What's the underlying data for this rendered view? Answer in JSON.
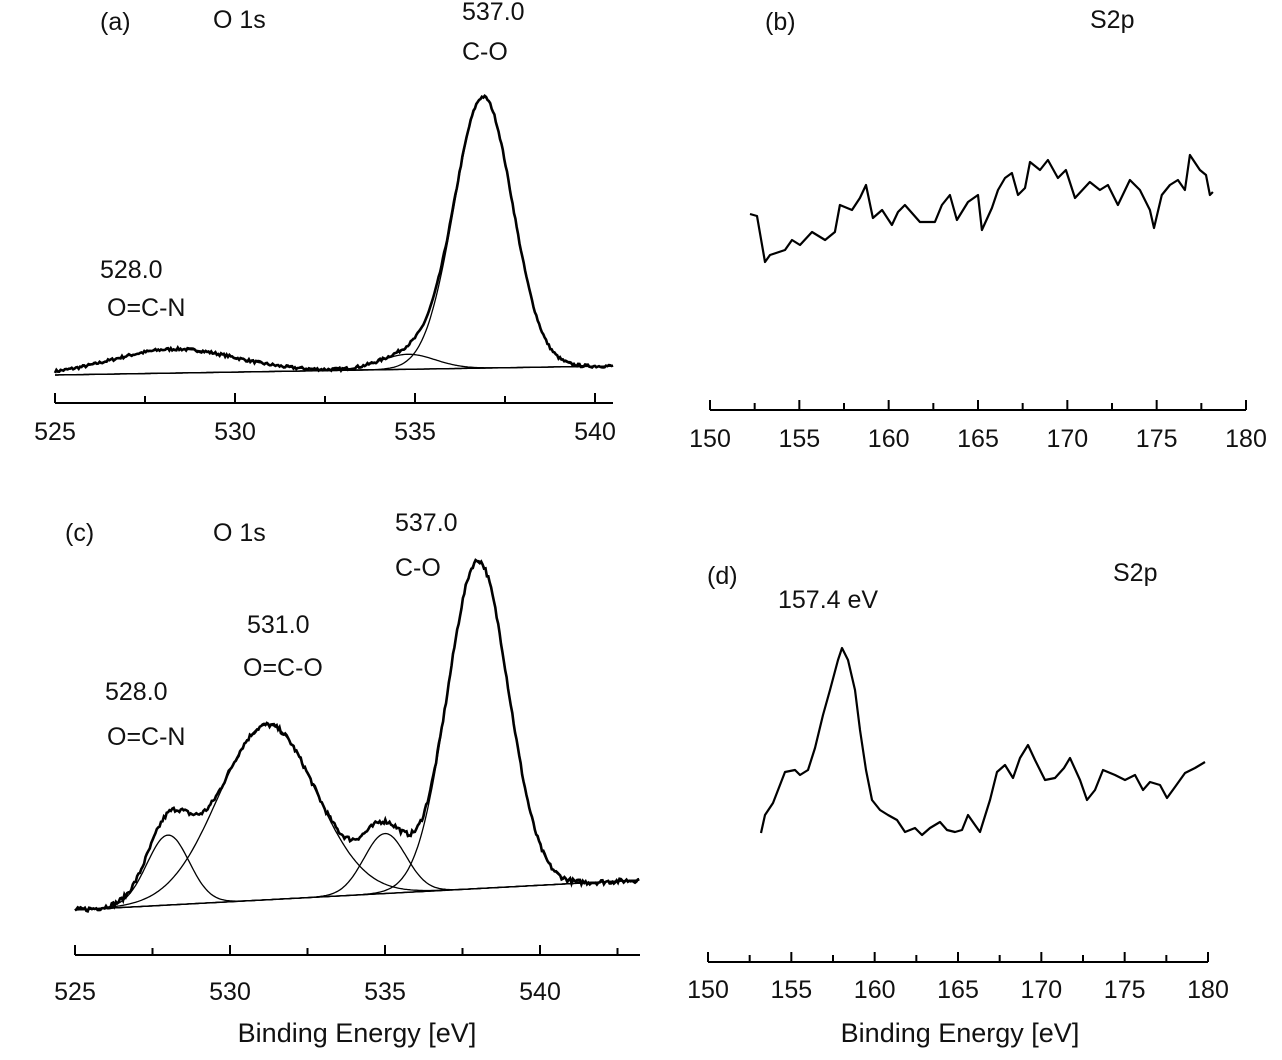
{
  "chart_data": [
    {
      "panel": "(a)",
      "type": "line",
      "title": "O 1s",
      "xlabel": "",
      "xlim": [
        525,
        540.5
      ],
      "xticks": [
        525,
        530,
        535,
        540
      ],
      "ylim": [
        0,
        300
      ],
      "baseline": {
        "x": [
          525,
          540.5
        ],
        "y": [
          5,
          14
        ]
      },
      "components": [
        {
          "center": 528.3,
          "height": 24,
          "fwhm": 4.0
        },
        {
          "center": 534.8,
          "height": 15,
          "fwhm": 1.8
        },
        {
          "center": 536.9,
          "height": 271,
          "fwhm": 1.9
        }
      ],
      "annotations": [
        "537.0",
        "C-O",
        "528.0",
        "O=C-N"
      ]
    },
    {
      "panel": "(b)",
      "type": "line",
      "title": "S2p",
      "xlabel": "",
      "xlim": [
        150,
        180
      ],
      "xticks": [
        150,
        155,
        160,
        165,
        170,
        175,
        180
      ],
      "ylim": [
        0,
        200
      ],
      "x": [
        152.24,
        152.63,
        153.08,
        153.36,
        154.2,
        154.59,
        155.04,
        155.71,
        156.44,
        156.99,
        157.27,
        157.95,
        158.39,
        158.73,
        159.12,
        159.63,
        160.18,
        160.52,
        160.91,
        161.75,
        162.59,
        162.98,
        163.43,
        163.82,
        164.44,
        165.0,
        165.22,
        165.78,
        166.12,
        166.51,
        166.9,
        167.24,
        167.63,
        167.91,
        168.47,
        168.91,
        169.47,
        169.92,
        170.43,
        171.26,
        171.82,
        172.27,
        172.83,
        173.5,
        174.06,
        174.62,
        174.85,
        175.29,
        175.74,
        176.19,
        176.58,
        176.86,
        177.42,
        177.76,
        177.98,
        178.15
      ],
      "y": [
        56,
        54,
        8,
        15,
        20,
        30,
        25,
        38,
        30,
        38,
        65,
        60,
        72,
        85,
        52,
        60,
        45,
        58,
        65,
        48,
        48,
        65,
        75,
        50,
        68,
        75,
        40,
        62,
        80,
        92,
        97,
        75,
        82,
        108,
        100,
        110,
        92,
        100,
        72,
        88,
        80,
        85,
        65,
        90,
        80,
        60,
        42,
        75,
        85,
        90,
        80,
        115,
        100,
        95,
        75,
        78
      ],
      "annotations": []
    },
    {
      "panel": "(c)",
      "type": "line",
      "title": "O 1s",
      "xlabel": "Binding Energy [eV]",
      "xlim": [
        525,
        543.2
      ],
      "xticks": [
        525,
        530,
        535,
        540
      ],
      "ylim": [
        0,
        400
      ],
      "baseline": {
        "x": [
          525,
          543.2
        ],
        "y": [
          10,
          40
        ]
      },
      "components": [
        {
          "center": 528.0,
          "height": 70,
          "fwhm": 1.6
        },
        {
          "center": 531.2,
          "height": 175,
          "fwhm": 3.7
        },
        {
          "center": 535.0,
          "height": 60,
          "fwhm": 1.6
        },
        {
          "center": 538.0,
          "height": 328,
          "fwhm": 2.3
        }
      ],
      "annotations": [
        "537.0",
        "C-O",
        "531.0",
        "O=C-O",
        "528.0",
        "O=C-N"
      ]
    },
    {
      "panel": "(d)",
      "type": "line",
      "title": "S2p",
      "xlabel": "Binding Energy [eV]",
      "xlim": [
        150,
        180
      ],
      "xticks": [
        150,
        155,
        160,
        165,
        170,
        175,
        180
      ],
      "ylim": [
        0,
        250
      ],
      "x": [
        153.18,
        153.42,
        153.9,
        154.62,
        155.22,
        155.52,
        156.0,
        156.42,
        156.9,
        157.32,
        157.8,
        158.04,
        158.4,
        158.82,
        159.12,
        159.48,
        159.84,
        160.32,
        160.8,
        161.34,
        161.82,
        162.42,
        162.84,
        163.32,
        163.92,
        164.34,
        164.82,
        165.24,
        165.6,
        166.02,
        166.32,
        166.92,
        167.34,
        167.82,
        168.3,
        168.72,
        169.2,
        169.62,
        170.22,
        170.82,
        171.36,
        171.72,
        172.32,
        172.74,
        173.22,
        173.7,
        174.42,
        175.02,
        175.62,
        176.1,
        176.52,
        177.12,
        177.54,
        178.02,
        178.62,
        179.22,
        179.82
      ],
      "y": [
        27,
        45,
        57,
        88,
        90,
        85,
        90,
        112,
        145,
        170,
        200,
        212,
        200,
        170,
        130,
        90,
        60,
        50,
        45,
        40,
        28,
        32,
        25,
        32,
        38,
        30,
        28,
        30,
        45,
        35,
        28,
        60,
        88,
        95,
        82,
        102,
        115,
        100,
        80,
        82,
        92,
        102,
        80,
        60,
        70,
        90,
        85,
        80,
        85,
        70,
        78,
        75,
        62,
        73,
        87,
        92,
        98
      ],
      "annotations": [
        "157.4 eV"
      ]
    }
  ]
}
